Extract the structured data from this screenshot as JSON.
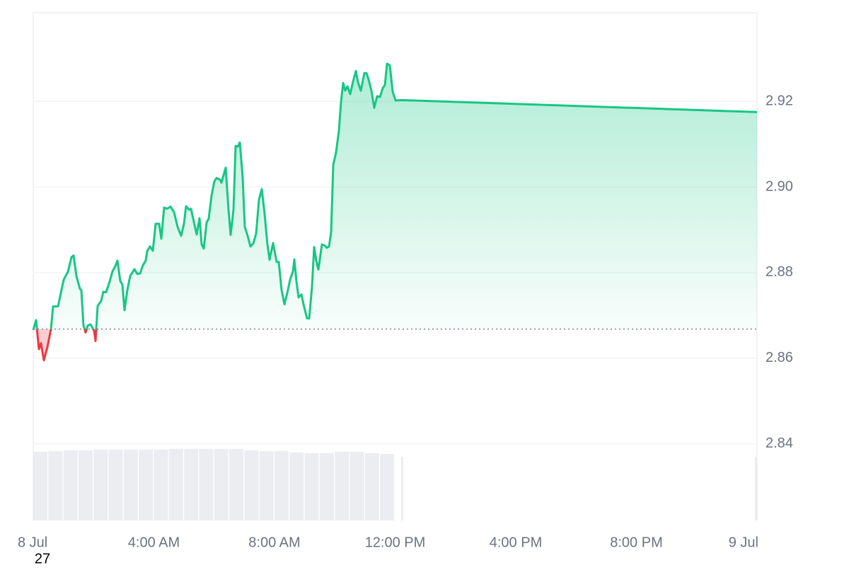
{
  "chart_data": {
    "type": "line",
    "x": [
      0,
      0.094,
      0.188,
      0.258,
      0.352,
      0.469,
      0.587,
      0.657,
      0.821,
      1.009,
      1.15,
      1.267,
      1.337,
      1.431,
      1.548,
      1.595,
      1.666,
      1.736,
      1.806,
      1.9,
      2.018,
      2.065,
      2.135,
      2.252,
      2.323,
      2.416,
      2.534,
      2.628,
      2.721,
      2.792,
      2.886,
      2.956,
      3.026,
      3.12,
      3.214,
      3.355,
      3.449,
      3.543,
      3.636,
      3.73,
      3.777,
      3.871,
      3.965,
      4.059,
      4.176,
      4.246,
      4.34,
      4.434,
      4.551,
      4.669,
      4.786,
      4.903,
      4.997,
      5.067,
      5.161,
      5.232,
      5.349,
      5.419,
      5.513,
      5.584,
      5.654,
      5.748,
      5.818,
      5.912,
      6.006,
      6.076,
      6.194,
      6.241,
      6.381,
      6.475,
      6.545,
      6.639,
      6.71,
      6.78,
      6.85,
      6.944,
      7.015,
      7.109,
      7.202,
      7.296,
      7.39,
      7.484,
      7.578,
      7.672,
      7.765,
      7.836,
      7.953,
      8.07,
      8.141,
      8.235,
      8.328,
      8.422,
      8.516,
      8.61,
      8.657,
      8.727,
      8.798,
      8.892,
      8.985,
      9.079,
      9.15,
      9.243,
      9.314,
      9.384,
      9.455,
      9.572,
      9.666,
      9.736,
      9.807,
      9.877,
      9.947,
      10.041,
      10.135,
      10.205,
      10.276,
      10.346,
      10.416,
      10.51,
      10.604,
      10.698,
      10.768,
      10.862,
      10.979,
      11.05,
      11.12,
      11.214,
      11.308,
      11.402,
      11.496,
      11.589,
      11.66,
      11.73,
      11.824,
      11.918,
      12.012,
      12.223,
      24
    ],
    "values": [
      2.8666,
      2.8689,
      2.8621,
      2.8635,
      2.8595,
      2.8626,
      2.8668,
      2.8721,
      2.8721,
      2.8783,
      2.8802,
      2.8836,
      2.884,
      2.8792,
      2.8762,
      2.8759,
      2.8676,
      2.866,
      2.8676,
      2.8679,
      2.8664,
      2.864,
      2.8722,
      2.8734,
      2.8755,
      2.8754,
      2.8779,
      2.8803,
      2.8815,
      2.8828,
      2.878,
      2.8772,
      2.8712,
      2.8759,
      2.8792,
      2.8808,
      2.8797,
      2.8798,
      2.8817,
      2.8828,
      2.885,
      2.8861,
      2.8851,
      2.8914,
      2.8914,
      2.8879,
      2.8952,
      2.8949,
      2.8954,
      2.8941,
      2.8907,
      2.8886,
      2.8914,
      2.8955,
      2.8947,
      2.8949,
      2.8911,
      2.8889,
      2.8927,
      2.8866,
      2.8856,
      2.8917,
      2.8926,
      2.898,
      2.9013,
      2.9021,
      2.9017,
      2.901,
      2.9045,
      2.8947,
      2.8888,
      2.8947,
      2.9096,
      2.9094,
      2.9104,
      2.9023,
      2.8907,
      2.8886,
      2.8861,
      2.8868,
      2.8891,
      2.897,
      2.8995,
      2.8937,
      2.8866,
      2.883,
      2.8869,
      2.8825,
      2.8825,
      2.8759,
      2.8726,
      2.8752,
      2.8783,
      2.8803,
      2.8831,
      2.878,
      2.8742,
      2.8749,
      2.8719,
      2.8693,
      2.8693,
      2.8767,
      2.886,
      2.8828,
      2.8807,
      2.8866,
      2.8863,
      2.8858,
      2.8861,
      2.8894,
      2.9051,
      2.9081,
      2.9131,
      2.9198,
      2.9243,
      2.9225,
      2.9235,
      2.9217,
      2.9246,
      2.9271,
      2.9245,
      2.9225,
      2.9266,
      2.9266,
      2.9251,
      2.9225,
      2.9185,
      2.9212,
      2.921,
      2.9231,
      2.9238,
      2.9288,
      2.9284,
      2.9223,
      2.9202,
      2.9203,
      2.9175
    ],
    "baseline": 2.8668,
    "color_up": "#16c784",
    "color_down": "#ea3943",
    "volume": {
      "x": [
        0,
        0.5,
        1,
        1.5,
        2,
        2.5,
        3,
        3.5,
        4,
        4.5,
        5,
        5.5,
        6,
        6.5,
        7,
        7.5,
        8,
        8.5,
        9,
        9.5,
        10,
        10.5,
        11,
        11.5,
        12.2,
        24
      ],
      "values": [
        97,
        98,
        99,
        99,
        100,
        100,
        100,
        100,
        100,
        101,
        101,
        101,
        101,
        101,
        99,
        98,
        98,
        96,
        95,
        95,
        97,
        97,
        95,
        94,
        90,
        90
      ],
      "color": "#e5e7eb"
    },
    "xlim": [
      0,
      24
    ],
    "xticks": [
      {
        "value": 0,
        "label": "8 Jul"
      },
      {
        "value": 4,
        "label": "4:00 AM"
      },
      {
        "value": 8,
        "label": "8:00 AM"
      },
      {
        "value": 12,
        "label": "12:00 PM"
      },
      {
        "value": 16,
        "label": "4:00 PM"
      },
      {
        "value": 20,
        "label": "8:00 PM"
      },
      {
        "value": 24,
        "label": "9 Jul"
      }
    ],
    "ylim": [
      2.8221,
      2.9407
    ],
    "yticks": [
      2.84,
      2.86,
      2.88,
      {
        "value": 2.9,
        "label": "2.90"
      },
      2.92
    ],
    "grid": true,
    "corner_label": "27"
  }
}
